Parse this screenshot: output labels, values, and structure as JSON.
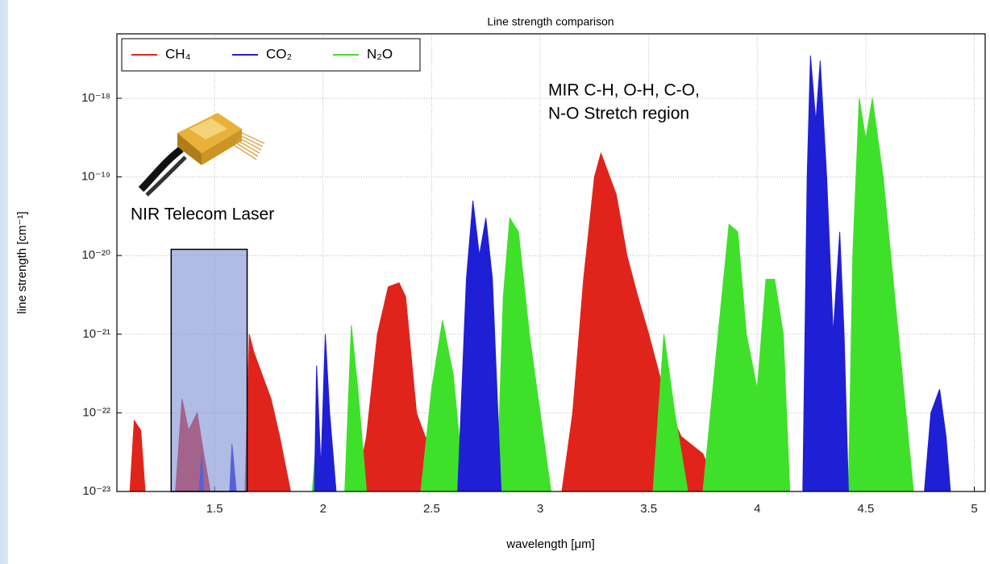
{
  "chart_data": {
    "type": "area",
    "title": "Line strength comparison",
    "xlabel": "wavelength [μm]",
    "ylabel": "line strength [cm⁻¹]",
    "log_y": true,
    "grid": true,
    "legend": "top-left",
    "xlim": [
      1.05,
      5.05
    ],
    "ylim": [
      1e-23,
      6.6e-18
    ],
    "xticks": [
      1.5,
      2.0,
      2.5,
      3.0,
      3.5,
      4.0,
      4.5,
      5.0
    ],
    "yticks": [
      {
        "value": 1e-23,
        "label": "10⁻²³"
      },
      {
        "value": 1e-22,
        "label": "10⁻²²"
      },
      {
        "value": 1e-21,
        "label": "10⁻²¹"
      },
      {
        "value": 1e-20,
        "label": "10⁻²⁰"
      },
      {
        "value": 1e-19,
        "label": "10⁻¹⁹"
      },
      {
        "value": 1e-18,
        "label": "10⁻¹⁸"
      }
    ],
    "series": [
      {
        "name": "CH₄",
        "color": "#e0241b",
        "x": [
          1.11,
          1.13,
          1.16,
          1.18,
          1.32,
          1.35,
          1.38,
          1.42,
          1.45,
          1.48,
          1.64,
          1.66,
          1.68,
          1.72,
          1.76,
          1.8,
          1.85,
          2.15,
          2.2,
          2.25,
          2.3,
          2.35,
          2.38,
          2.43,
          2.47,
          2.52,
          2.58,
          3.1,
          3.15,
          3.2,
          3.25,
          3.28,
          3.31,
          3.35,
          3.4,
          3.45,
          3.5,
          3.55,
          3.6,
          3.65,
          3.75,
          3.82
        ],
        "values": [
          1e-23,
          8e-23,
          6e-23,
          1e-23,
          1e-23,
          1.5e-22,
          6e-23,
          1e-22,
          3e-23,
          1e-23,
          1e-23,
          1e-21,
          6e-22,
          3e-22,
          1.5e-22,
          5e-23,
          1e-23,
          1e-23,
          5e-23,
          1e-21,
          4e-21,
          4.5e-21,
          3e-21,
          1e-22,
          5e-23,
          3e-23,
          1e-23,
          1e-23,
          1e-22,
          5e-21,
          1e-19,
          2e-19,
          1.2e-19,
          6e-20,
          1e-20,
          3e-21,
          1e-21,
          3e-22,
          1e-22,
          5e-23,
          3e-23,
          1e-23
        ]
      },
      {
        "name": "CO₂",
        "color": "#1f1fd6",
        "x": [
          1.43,
          1.44,
          1.45,
          1.57,
          1.58,
          1.6,
          1.96,
          1.97,
          1.99,
          2.01,
          2.03,
          2.06,
          2.62,
          2.66,
          2.69,
          2.72,
          2.75,
          2.78,
          2.82,
          4.21,
          4.23,
          4.245,
          4.27,
          4.29,
          4.32,
          4.35,
          4.38,
          4.4,
          4.42,
          4.77,
          4.8,
          4.84,
          4.87,
          4.89
        ],
        "values": [
          1e-23,
          3e-23,
          1e-23,
          1e-23,
          4e-23,
          1e-23,
          1e-23,
          4e-22,
          2e-23,
          1e-21,
          1e-22,
          1e-23,
          1e-23,
          5e-21,
          5e-20,
          1e-20,
          3e-20,
          5e-21,
          1e-23,
          1e-23,
          1e-19,
          3.5e-18,
          5e-19,
          3e-18,
          1e-19,
          1e-21,
          2e-20,
          1e-21,
          1e-23,
          1e-23,
          1e-22,
          2e-22,
          5e-23,
          1e-23
        ]
      },
      {
        "name": "N₂O",
        "color": "#3fe02a",
        "x": [
          1.95,
          1.97,
          2.0,
          2.1,
          2.13,
          2.16,
          2.2,
          2.45,
          2.5,
          2.55,
          2.6,
          2.65,
          2.8,
          2.83,
          2.86,
          2.9,
          2.95,
          3.0,
          3.05,
          3.52,
          3.57,
          3.62,
          3.68,
          3.75,
          3.82,
          3.87,
          3.91,
          3.95,
          4.0,
          4.04,
          4.08,
          4.12,
          4.15,
          4.25,
          4.28,
          4.31,
          4.34,
          4.37,
          4.42,
          4.44,
          4.47,
          4.5,
          4.53,
          4.58,
          4.65,
          4.72
        ],
        "values": [
          1e-23,
          5e-23,
          1e-23,
          1e-23,
          1.3e-21,
          2e-22,
          1e-23,
          1e-23,
          2e-22,
          1.5e-21,
          3e-22,
          1e-23,
          1e-23,
          3e-21,
          3e-20,
          2e-20,
          1e-21,
          1e-22,
          1e-23,
          1e-23,
          1e-21,
          1e-22,
          1e-23,
          1e-23,
          1e-21,
          2.5e-20,
          2e-20,
          1e-21,
          2e-22,
          5e-21,
          5e-21,
          1e-21,
          1e-23,
          1e-23,
          4e-22,
          1e-22,
          4e-22,
          1e-23,
          1e-23,
          1e-20,
          1e-18,
          3e-19,
          1e-18,
          1e-19,
          1e-21,
          1e-23
        ]
      }
    ],
    "draw_order": [
      0,
      2,
      1
    ],
    "highlight": {
      "x": [
        1.3,
        1.65
      ],
      "top": 1.2e-20,
      "color": "#7b8ed6"
    },
    "annotations": [
      "MIR C-H, O-H, C-O,",
      "N-O Stretch region",
      "NIR Telecom Laser"
    ]
  }
}
